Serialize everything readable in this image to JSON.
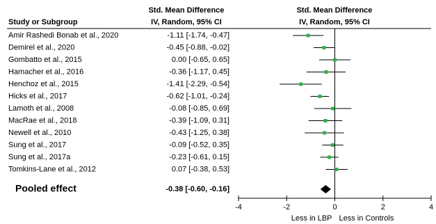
{
  "chart_data": {
    "type": "forest",
    "study_header": "Study or Subgroup",
    "estimate_header": [
      "Std. Mean Difference",
      "IV, Random, 95% CI"
    ],
    "plot_header": [
      "Std. Mean Difference",
      "IV, Random, 95% CI"
    ],
    "categories": [
      "Amir Rashedi Bonab et al., 2020",
      "Demirel et al., 2020",
      "Gombatto et al., 2015",
      "Hamacher et al., 2016",
      "Henchoz et al., 2015",
      "Hicks et al., 2017",
      "Lamoth et al., 2008",
      "MacRae et al., 2018",
      "Newell et al., 2010",
      "Sung et al., 2017",
      "Sung et al., 2017a",
      "Tomkins-Lane et al., 2012"
    ],
    "values": [
      -1.11,
      -0.45,
      0.0,
      -0.36,
      -1.41,
      -0.62,
      -0.08,
      -0.39,
      -0.43,
      -0.09,
      -0.23,
      0.07
    ],
    "lower": [
      -1.74,
      -0.88,
      -0.65,
      -1.17,
      -2.29,
      -1.01,
      -0.85,
      -1.09,
      -1.25,
      -0.52,
      -0.61,
      -0.38
    ],
    "upper": [
      -0.47,
      -0.02,
      0.65,
      0.45,
      -0.54,
      -0.24,
      0.69,
      0.31,
      0.38,
      0.35,
      0.15,
      0.53
    ],
    "value_labels": [
      "-1.11 [-1.74, -0.47]",
      "-0.45 [-0.88, -0.02]",
      "0.00 [-0.65, 0.65]",
      "-0.36 [-1.17, 0.45]",
      "-1.41 [-2.29, -0.54]",
      "-0.62 [-1.01, -0.24]",
      "-0.08 [-0.85, 0.69]",
      "-0.39 [-1.09, 0.31]",
      "-0.43 [-1.25, 0.38]",
      "-0.09 [-0.52, 0.35]",
      "-0.23 [-0.61, 0.15]",
      "0.07 [-0.38, 0.53]"
    ],
    "color": "#2db34a",
    "pooled": {
      "name": "Pooled effect",
      "value": -0.38,
      "lower": -0.6,
      "upper": -0.16,
      "value_label": "-0.38 [-0.60, -0.16]"
    },
    "xlim": [
      -4,
      4
    ],
    "xticks": [
      -4,
      -2,
      0,
      2,
      4
    ],
    "left_label": "Less in LBP",
    "right_label": "Less in Controls"
  }
}
